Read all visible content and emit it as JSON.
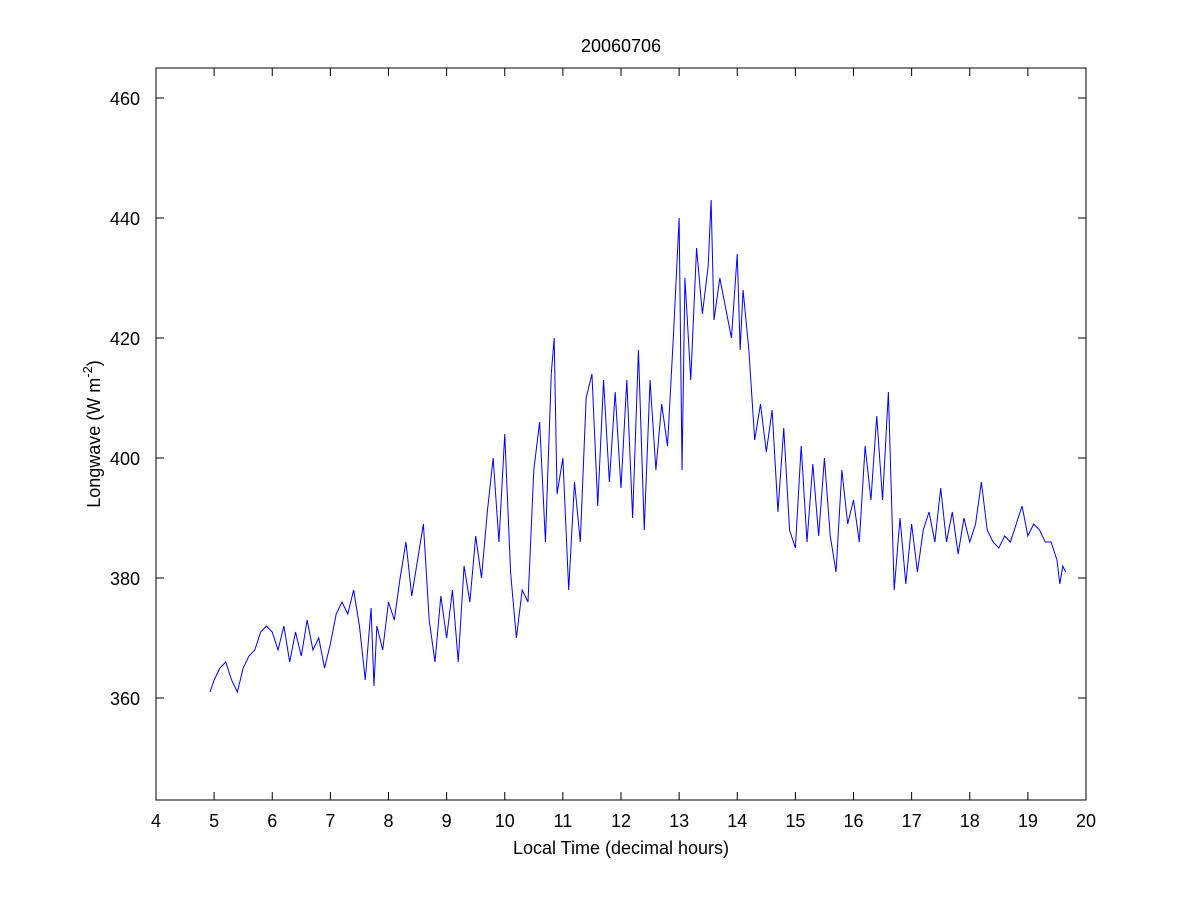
{
  "chart_data": {
    "type": "line",
    "title": "20060706",
    "xlabel": "Local Time (decimal hours)",
    "ylabel": {
      "text": "Longwave (W m",
      "sup": "-2",
      "close": ")"
    },
    "xlim": [
      4,
      20
    ],
    "xticks": [
      4,
      5,
      6,
      7,
      8,
      9,
      10,
      11,
      12,
      13,
      14,
      15,
      16,
      17,
      18,
      19,
      20
    ],
    "ylim": [
      343,
      465
    ],
    "yticks": [
      360,
      380,
      400,
      420,
      440,
      460
    ],
    "grid": false,
    "series": [
      {
        "color": "#0000ff",
        "x": [
          4.93,
          5.0,
          5.1,
          5.2,
          5.3,
          5.4,
          5.5,
          5.6,
          5.7,
          5.8,
          5.9,
          6.0,
          6.1,
          6.2,
          6.3,
          6.4,
          6.5,
          6.6,
          6.7,
          6.8,
          6.9,
          7.0,
          7.1,
          7.2,
          7.3,
          7.4,
          7.5,
          7.6,
          7.7,
          7.75,
          7.8,
          7.9,
          8.0,
          8.1,
          8.2,
          8.3,
          8.4,
          8.5,
          8.6,
          8.7,
          8.8,
          8.9,
          9.0,
          9.1,
          9.2,
          9.3,
          9.4,
          9.5,
          9.6,
          9.7,
          9.8,
          9.9,
          10.0,
          10.1,
          10.2,
          10.3,
          10.4,
          10.5,
          10.6,
          10.7,
          10.8,
          10.85,
          10.9,
          11.0,
          11.1,
          11.2,
          11.3,
          11.4,
          11.5,
          11.6,
          11.7,
          11.8,
          11.9,
          12.0,
          12.1,
          12.2,
          12.3,
          12.4,
          12.5,
          12.6,
          12.7,
          12.8,
          12.9,
          13.0,
          13.05,
          13.1,
          13.2,
          13.3,
          13.4,
          13.5,
          13.55,
          13.6,
          13.7,
          13.8,
          13.9,
          14.0,
          14.05,
          14.1,
          14.2,
          14.3,
          14.4,
          14.5,
          14.6,
          14.7,
          14.8,
          14.9,
          15.0,
          15.1,
          15.2,
          15.3,
          15.4,
          15.5,
          15.6,
          15.7,
          15.8,
          15.9,
          16.0,
          16.1,
          16.2,
          16.3,
          16.4,
          16.5,
          16.6,
          16.7,
          16.8,
          16.9,
          17.0,
          17.1,
          17.2,
          17.3,
          17.4,
          17.5,
          17.6,
          17.7,
          17.8,
          17.9,
          18.0,
          18.1,
          18.2,
          18.3,
          18.4,
          18.5,
          18.6,
          18.7,
          18.8,
          18.9,
          19.0,
          19.1,
          19.2,
          19.3,
          19.4,
          19.5,
          19.55,
          19.6,
          19.65
        ],
        "values": [
          361,
          363,
          365,
          366,
          363,
          361,
          365,
          367,
          368,
          371,
          372,
          371,
          368,
          372,
          366,
          371,
          367,
          373,
          368,
          370,
          365,
          369,
          374,
          376,
          374,
          378,
          372,
          363,
          375,
          362,
          372,
          368,
          376,
          373,
          380,
          386,
          377,
          383,
          389,
          373,
          366,
          377,
          370,
          378,
          366,
          382,
          376,
          387,
          380,
          391,
          400,
          386,
          404,
          381,
          370,
          378,
          376,
          398,
          406,
          386,
          414,
          420,
          394,
          400,
          378,
          396,
          386,
          410,
          414,
          392,
          413,
          396,
          411,
          395,
          413,
          390,
          418,
          388,
          413,
          398,
          409,
          402,
          420,
          440,
          398,
          430,
          413,
          435,
          424,
          432,
          443,
          423,
          430,
          425,
          420,
          434,
          418,
          428,
          418,
          403,
          409,
          401,
          408,
          391,
          405,
          388,
          385,
          402,
          386,
          399,
          387,
          400,
          387,
          381,
          398,
          389,
          393,
          386,
          402,
          393,
          407,
          393,
          411,
          378,
          390,
          379,
          389,
          381,
          388,
          391,
          386,
          395,
          386,
          391,
          384,
          390,
          386,
          389,
          396,
          388,
          386,
          385,
          387,
          386,
          389,
          392,
          387,
          389,
          388,
          386,
          386,
          383,
          379,
          382,
          381
        ]
      }
    ]
  }
}
